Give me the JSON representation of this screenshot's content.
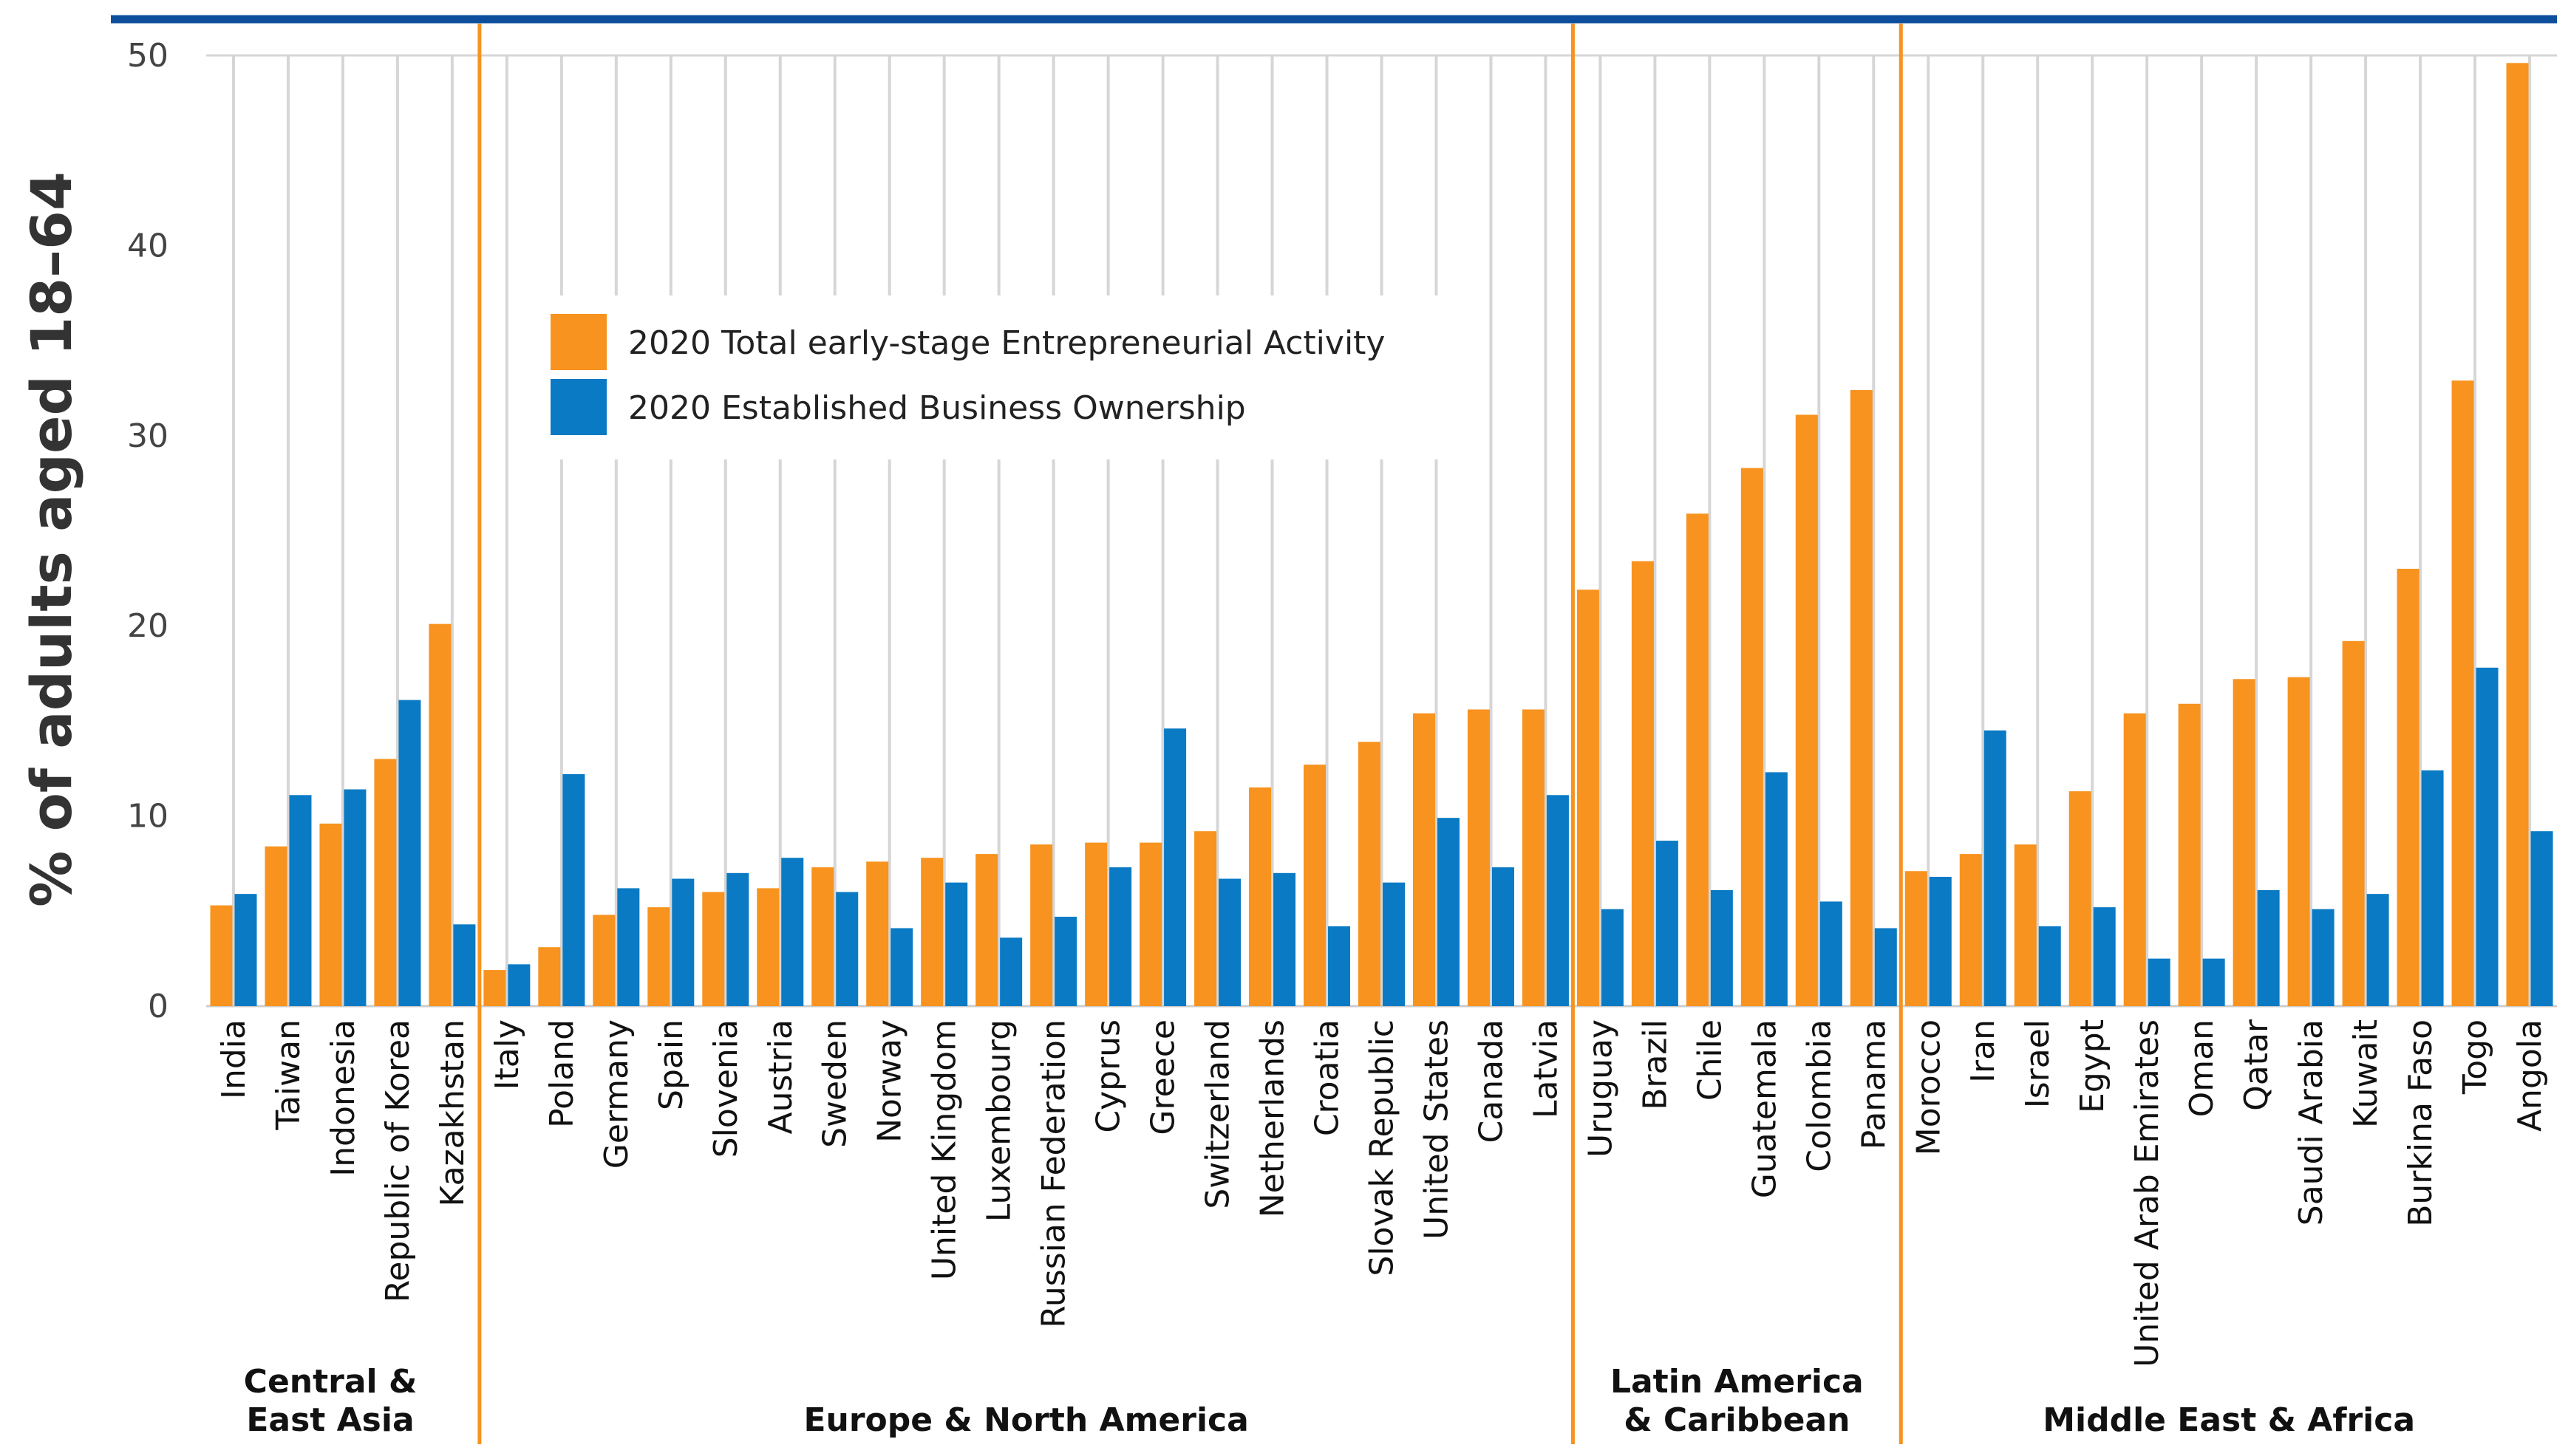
{
  "chart_data": {
    "type": "bar",
    "title": "",
    "xlabel": "",
    "ylabel": "% of adults aged 18–64",
    "ylim": [
      0,
      50
    ],
    "yticks": [
      "0",
      "10",
      "20",
      "30",
      "40",
      "50"
    ],
    "grid": true,
    "legend_position": "upper-left-center",
    "colors": {
      "tea": "#f7931e",
      "ebo": "#0a7ac4",
      "divider": "#f7931e",
      "top_rule": "#0d4f9c"
    },
    "series": [
      {
        "name": "2020 Total early-stage Entrepreneurial Activity",
        "values": [
          5.3,
          8.4,
          9.6,
          13.0,
          20.1,
          1.9,
          3.1,
          4.8,
          5.2,
          6.0,
          6.2,
          7.3,
          7.6,
          7.8,
          8.0,
          8.5,
          8.6,
          8.6,
          9.2,
          11.5,
          12.7,
          13.9,
          15.4,
          15.6,
          15.6,
          21.9,
          23.4,
          25.9,
          28.3,
          31.1,
          32.4,
          7.1,
          8.0,
          8.5,
          11.3,
          15.4,
          15.9,
          17.2,
          17.3,
          19.2,
          23.0,
          32.9,
          49.6
        ]
      },
      {
        "name": "2020 Established Business Ownership",
        "values": [
          5.9,
          11.1,
          11.4,
          16.1,
          4.3,
          2.2,
          12.2,
          6.2,
          6.7,
          7.0,
          7.8,
          6.0,
          4.1,
          6.5,
          3.6,
          4.7,
          7.3,
          14.6,
          6.7,
          7.0,
          4.2,
          6.5,
          9.9,
          7.3,
          11.1,
          5.1,
          8.7,
          6.1,
          12.3,
          5.5,
          4.1,
          6.8,
          14.5,
          4.2,
          5.2,
          2.5,
          2.5,
          6.1,
          5.1,
          5.9,
          12.4,
          17.8,
          9.2
        ]
      }
    ],
    "categories": [
      "India",
      "Taiwan",
      "Indonesia",
      "Republic of Korea",
      "Kazakhstan",
      "Italy",
      "Poland",
      "Germany",
      "Spain",
      "Slovenia",
      "Austria",
      "Sweden",
      "Norway",
      "United Kingdom",
      "Luxembourg",
      "Russian Federation",
      "Cyprus",
      "Greece",
      "Switzerland",
      "Netherlands",
      "Croatia",
      "Slovak Republic",
      "United States",
      "Canada",
      "Latvia",
      "Uruguay",
      "Brazil",
      "Chile",
      "Guatemala",
      "Colombia",
      "Panama",
      "Morocco",
      "Iran",
      "Israel",
      "Egypt",
      "United Arab Emirates",
      "Oman",
      "Qatar",
      "Saudi Arabia",
      "Kuwait",
      "Burkina Faso",
      "Togo",
      "Angola"
    ],
    "regions": [
      {
        "lines": [
          "Central &",
          "East Asia"
        ],
        "start": 0,
        "end": 4
      },
      {
        "lines": [
          "Europe & North America"
        ],
        "start": 5,
        "end": 24
      },
      {
        "lines": [
          "Latin America",
          "& Caribbean"
        ],
        "start": 25,
        "end": 30
      },
      {
        "lines": [
          "Middle East & Africa"
        ],
        "start": 31,
        "end": 42
      }
    ]
  }
}
